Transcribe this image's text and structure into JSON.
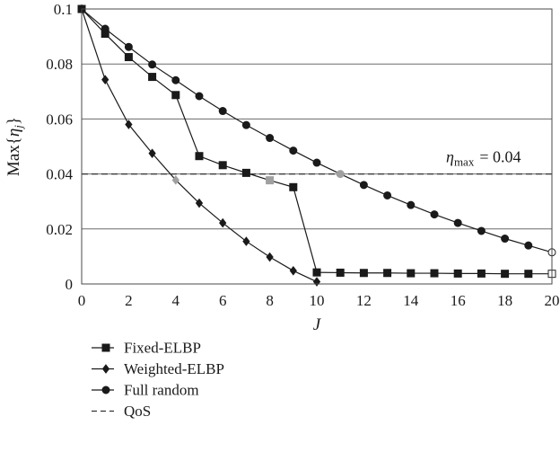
{
  "chart_data": {
    "type": "line",
    "title": "",
    "xlabel": "J",
    "ylabel": "Max{η_j}",
    "xlim": [
      0,
      20
    ],
    "ylim": [
      0,
      0.1
    ],
    "x_ticks": [
      "0",
      "2",
      "4",
      "6",
      "8",
      "10",
      "12",
      "14",
      "16",
      "18",
      "20"
    ],
    "y_ticks": [
      "0",
      "0.02",
      "0.04",
      "0.06",
      "0.08",
      "0.1"
    ],
    "grid": "horizontal",
    "legend_position": "bottom",
    "annotation": {
      "symbol": "η",
      "subscript": "max",
      "value_text": "= 0.04"
    },
    "qos_level": 0.04,
    "series": [
      {
        "name": "Fixed-ELBP",
        "marker": "square",
        "x": [
          0,
          1,
          2,
          3,
          4,
          5,
          6,
          7,
          8,
          9,
          10,
          11,
          12,
          13,
          14,
          15,
          16,
          17,
          18,
          19,
          20
        ],
        "values": [
          0.1,
          0.091,
          0.0825,
          0.0753,
          0.0687,
          0.0465,
          0.0432,
          0.0404,
          0.0377,
          0.0352,
          0.0042,
          0.0041,
          0.004,
          0.004,
          0.0039,
          0.0039,
          0.0038,
          0.0038,
          0.0037,
          0.0037,
          0.0037
        ],
        "highlighted_x": [
          8
        ],
        "open_x": [
          20
        ]
      },
      {
        "name": "Weighted-ELBP",
        "marker": "diamond",
        "x": [
          0,
          1,
          2,
          3,
          4,
          5,
          6,
          7,
          8,
          9,
          10
        ],
        "values": [
          0.1,
          0.0743,
          0.058,
          0.0475,
          0.0378,
          0.0294,
          0.0222,
          0.0155,
          0.0098,
          0.0048,
          0.0008
        ],
        "highlighted_x": [
          4
        ],
        "open_x": []
      },
      {
        "name": "Full random",
        "marker": "circle",
        "x": [
          0,
          1,
          2,
          3,
          4,
          5,
          6,
          7,
          8,
          9,
          10,
          11,
          12,
          13,
          14,
          15,
          16,
          17,
          18,
          19,
          20
        ],
        "values": [
          0.1,
          0.0928,
          0.0862,
          0.0798,
          0.0741,
          0.0683,
          0.0629,
          0.0578,
          0.0531,
          0.0485,
          0.0441,
          0.04,
          0.036,
          0.0322,
          0.0287,
          0.0253,
          0.0222,
          0.0193,
          0.0165,
          0.014,
          0.0115
        ],
        "highlighted_x": [
          11
        ],
        "open_x": [
          20
        ]
      },
      {
        "name": "QoS",
        "marker": "dashed",
        "x": [
          0,
          20
        ],
        "values": [
          0.04,
          0.04
        ],
        "highlighted_x": [],
        "open_x": []
      }
    ]
  }
}
